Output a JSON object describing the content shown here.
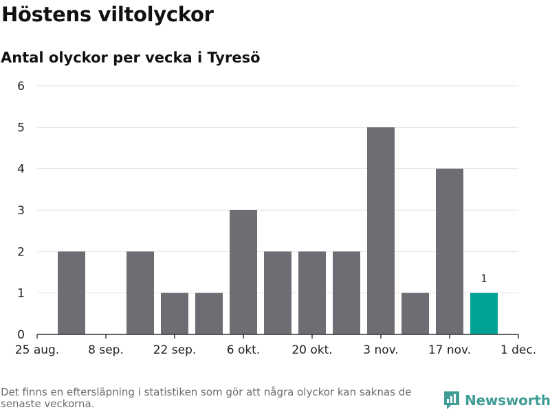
{
  "header": {
    "title": "Höstens viltolyckor",
    "subtitle": "Antal olyckor per vecka i Tyresö"
  },
  "footer": {
    "note": "Det finns en eftersläpning i statistiken som gör att några olyckor kan saknas de senaste veckorna.",
    "logo_text": "Newsworthy"
  },
  "colors": {
    "bar": "#6e6d73",
    "highlight": "#00a396",
    "grid": "#e2e2e2",
    "axis": "#333333",
    "brand": "#3f9d95"
  },
  "chart_data": {
    "type": "bar",
    "title": "Höstens viltolyckor",
    "subtitle": "Antal olyckor per vecka i Tyresö",
    "xlabel": "",
    "ylabel": "",
    "ylim": [
      0,
      6
    ],
    "yticks": [
      "0",
      "1",
      "2",
      "3",
      "4",
      "5",
      "6"
    ],
    "xticks": [
      "25 aug.",
      "8 sep.",
      "22 sep.",
      "6 okt.",
      "20 okt.",
      "3 nov.",
      "17 nov.",
      "1 dec."
    ],
    "values": [
      2,
      0,
      2,
      1,
      1,
      3,
      2,
      2,
      2,
      5,
      1,
      4,
      1
    ],
    "highlight_index": 12,
    "highlight_label": "1",
    "grid": true,
    "legend": "none"
  }
}
